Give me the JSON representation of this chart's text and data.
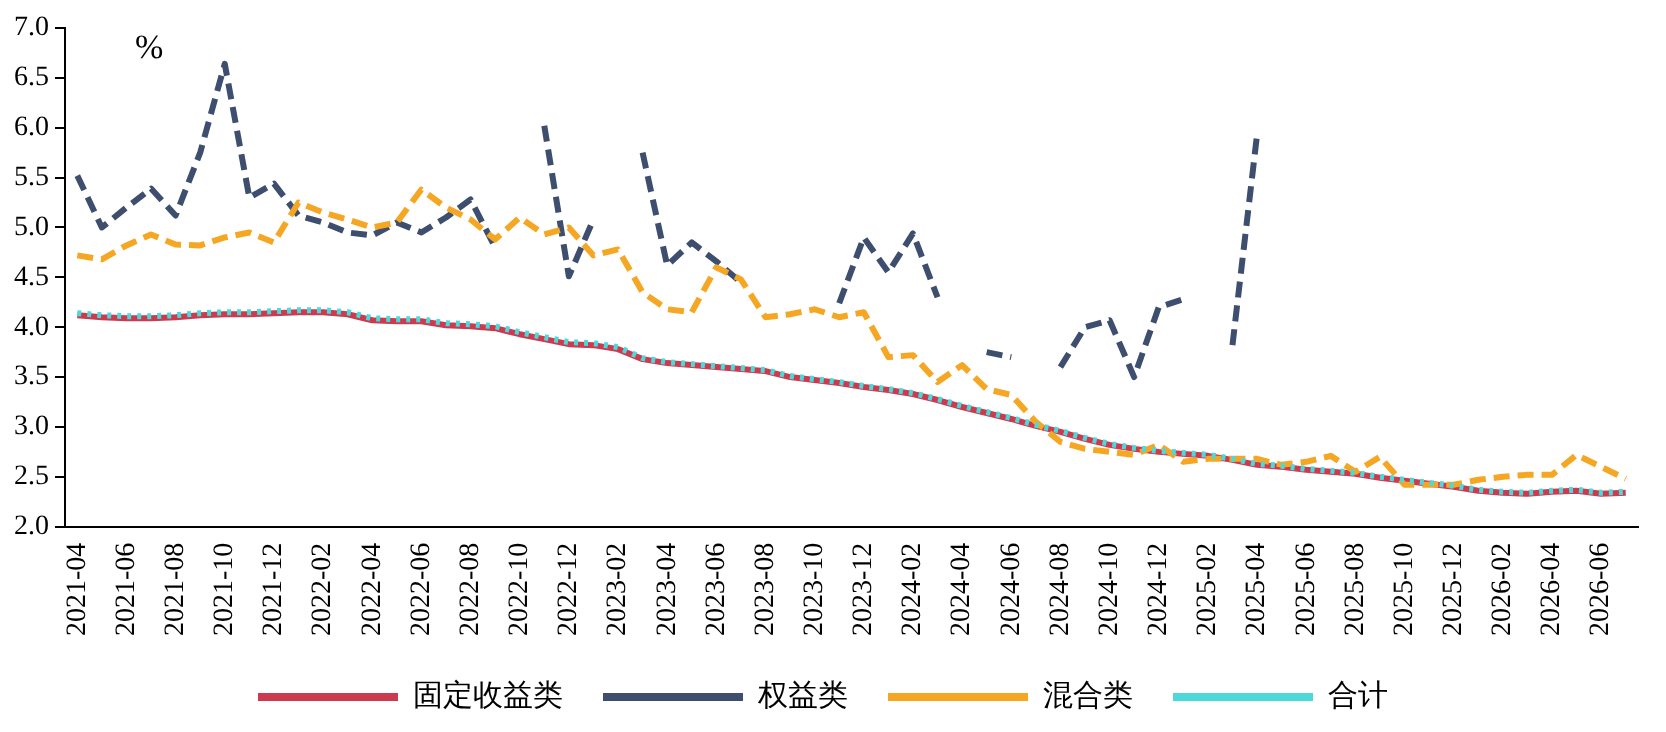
{
  "chart_data": {
    "type": "line",
    "ylabel": "%",
    "categories": [
      "2021-04",
      null,
      "2021-06",
      null,
      "2021-08",
      null,
      "2021-10",
      null,
      "2021-12",
      null,
      "2022-02",
      null,
      "2022-04",
      null,
      "2022-06",
      null,
      "2022-08",
      null,
      "2022-10",
      null,
      "2022-12",
      null,
      "2023-02",
      null,
      "2023-04",
      null,
      "2023-06",
      null,
      "2023-08",
      null,
      "2023-10",
      null,
      "2023-12",
      null,
      "2024-02",
      null,
      "2024-04",
      null,
      "2024-06",
      null,
      "2024-08",
      null,
      "2024-10",
      null,
      "2024-12",
      null,
      "2025-02",
      null,
      "2025-04",
      null,
      "2025-06",
      null,
      "2025-08",
      null,
      "2025-10",
      null,
      "2025-12",
      null,
      "2026-02",
      null,
      "2026-04",
      null,
      "2026-06",
      null
    ],
    "ylim": [
      2,
      7
    ],
    "yticks": [
      {
        "value": 2,
        "label": "2.0"
      },
      {
        "value": 2.5,
        "label": "2.5"
      },
      {
        "value": 3,
        "label": "3.0"
      },
      {
        "value": 3.5,
        "label": "3.5"
      },
      {
        "value": 4,
        "label": "4.0"
      },
      {
        "value": 4.5,
        "label": "4.5"
      },
      {
        "value": 5,
        "label": "5.0"
      },
      {
        "value": 5.5,
        "label": "5.5"
      },
      {
        "value": 6,
        "label": "6.0"
      },
      {
        "value": 6.5,
        "label": "6.5"
      },
      {
        "value": 7,
        "label": "7.0"
      }
    ],
    "legend": "bottom",
    "marker": "none",
    "series": [
      {
        "name": "固定收益类",
        "color": "#cc3a4f",
        "line_style": "solid",
        "values": [
          4.12,
          4.1,
          4.09,
          4.09,
          4.1,
          4.12,
          4.13,
          4.13,
          4.14,
          4.15,
          4.15,
          4.13,
          4.07,
          4.06,
          4.06,
          4.02,
          4.01,
          3.99,
          3.93,
          3.88,
          3.83,
          3.82,
          3.78,
          3.68,
          3.64,
          3.62,
          3.6,
          3.58,
          3.56,
          3.5,
          3.47,
          3.44,
          3.4,
          3.37,
          3.33,
          3.27,
          3.2,
          3.14,
          3.08,
          3.01,
          2.95,
          2.88,
          2.82,
          2.78,
          2.75,
          2.73,
          2.71,
          2.67,
          2.62,
          2.6,
          2.57,
          2.55,
          2.53,
          2.49,
          2.46,
          2.43,
          2.4,
          2.36,
          2.34,
          2.33,
          2.35,
          2.36,
          2.33,
          2.34
        ]
      },
      {
        "name": "权益类",
        "color": "#3d4e6e",
        "line_style": "dashed",
        "values": [
          5.52,
          5.0,
          5.2,
          5.39,
          5.12,
          5.75,
          6.64,
          5.3,
          5.44,
          5.12,
          5.05,
          4.95,
          4.92,
          5.05,
          4.95,
          5.1,
          5.28,
          4.8,
          null,
          6.02,
          4.51,
          5.08,
          null,
          5.75,
          4.62,
          4.85,
          4.66,
          4.45,
          null,
          null,
          null,
          4.24,
          4.9,
          4.55,
          4.94,
          4.3,
          null,
          3.75,
          3.7,
          null,
          3.6,
          4.0,
          4.07,
          3.5,
          4.2,
          4.28,
          null,
          3.82,
          5.93,
          null,
          null,
          null,
          null,
          null,
          null,
          null,
          null,
          null,
          null,
          null,
          null,
          null,
          null,
          null
        ]
      },
      {
        "name": "混合类",
        "color": "#f5a623",
        "line_style": "dashed",
        "values": [
          4.72,
          4.68,
          4.82,
          4.93,
          4.83,
          4.82,
          4.9,
          4.95,
          4.85,
          5.25,
          5.15,
          5.08,
          5.0,
          5.05,
          5.38,
          5.2,
          5.08,
          4.88,
          5.1,
          4.93,
          5.0,
          4.72,
          4.78,
          4.35,
          4.18,
          4.15,
          4.6,
          4.48,
          4.1,
          4.13,
          4.18,
          4.1,
          4.15,
          3.7,
          3.72,
          3.45,
          3.62,
          3.38,
          3.32,
          3.05,
          2.85,
          2.78,
          2.75,
          2.72,
          2.82,
          2.65,
          2.68,
          2.68,
          2.68,
          2.62,
          2.65,
          2.71,
          2.55,
          2.7,
          2.42,
          2.42,
          2.42,
          2.47,
          2.5,
          2.52,
          2.52,
          2.72,
          2.6,
          2.48
        ]
      },
      {
        "name": "合计",
        "color": "#4dd9d9",
        "line_style": "dotted",
        "values": [
          4.14,
          4.12,
          4.11,
          4.11,
          4.12,
          4.14,
          4.15,
          4.15,
          4.16,
          4.17,
          4.17,
          4.15,
          4.09,
          4.08,
          4.08,
          4.04,
          4.03,
          4.01,
          3.95,
          3.9,
          3.85,
          3.84,
          3.8,
          3.69,
          3.65,
          3.63,
          3.61,
          3.59,
          3.57,
          3.51,
          3.48,
          3.45,
          3.41,
          3.38,
          3.34,
          3.28,
          3.21,
          3.15,
          3.09,
          3.02,
          2.96,
          2.89,
          2.83,
          2.79,
          2.76,
          2.74,
          2.72,
          2.68,
          2.63,
          2.61,
          2.58,
          2.56,
          2.54,
          2.5,
          2.47,
          2.44,
          2.41,
          2.37,
          2.35,
          2.34,
          2.36,
          2.37,
          2.34,
          2.35
        ]
      }
    ]
  }
}
